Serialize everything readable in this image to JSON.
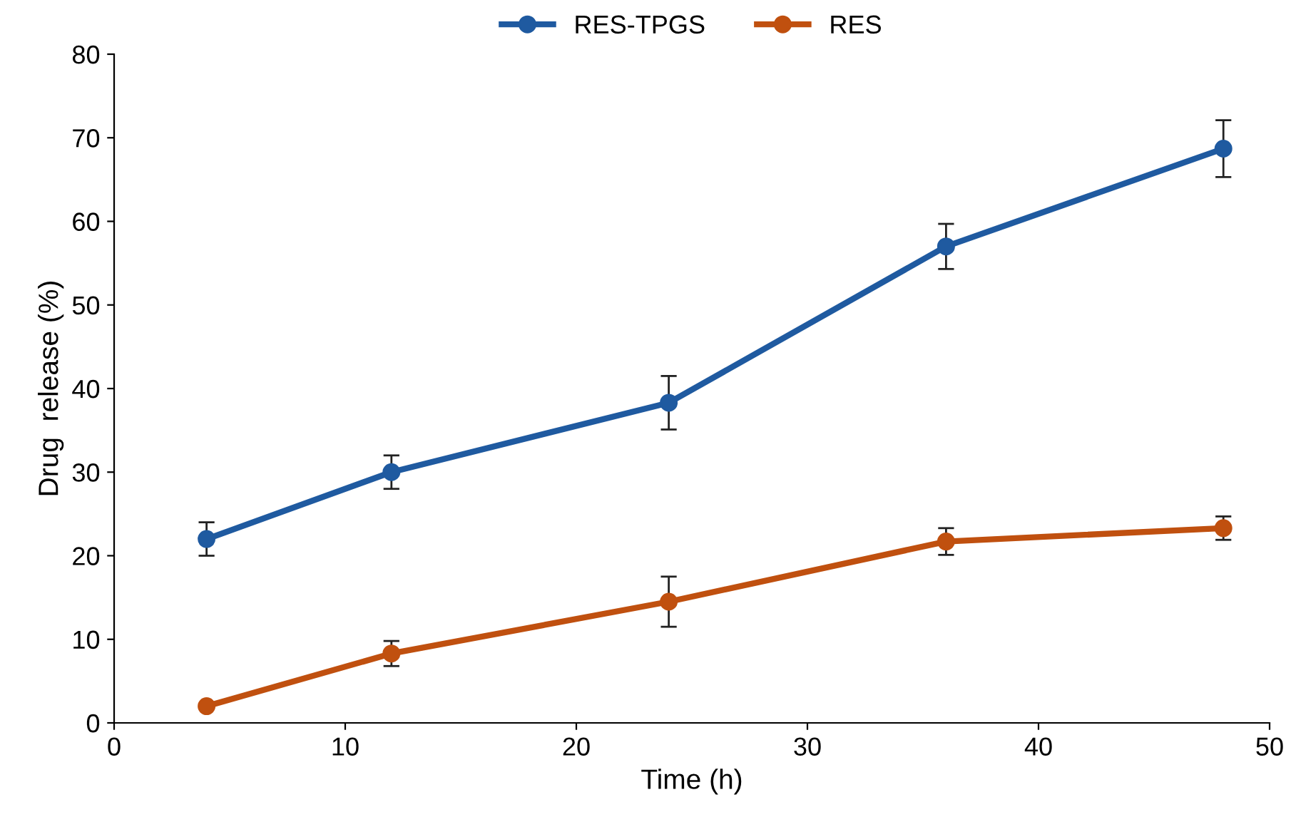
{
  "chart_data": {
    "type": "line",
    "xlabel": "Time (h)",
    "ylabel": "Drug  release (%)",
    "x": [
      4,
      12,
      24,
      36,
      48
    ],
    "series": [
      {
        "name": "RES-TPGS",
        "color": "#1f5aa0",
        "values": [
          22,
          30,
          38.3,
          57,
          68.7
        ],
        "errors": [
          2,
          2,
          3.2,
          2.7,
          3.4
        ]
      },
      {
        "name": "RES",
        "color": "#c0500f",
        "values": [
          2,
          8.3,
          14.5,
          21.7,
          23.3
        ],
        "errors": [
          null,
          1.5,
          3,
          1.6,
          1.4
        ]
      }
    ],
    "xlim": [
      0,
      50
    ],
    "xticks": [
      0,
      10,
      20,
      30,
      40,
      50
    ],
    "ylim": [
      0,
      80
    ],
    "yticks": [
      0,
      10,
      20,
      30,
      40,
      50,
      60,
      70,
      80
    ],
    "grid": false,
    "legend": "top",
    "marker": "circle",
    "line_style": "solid"
  }
}
